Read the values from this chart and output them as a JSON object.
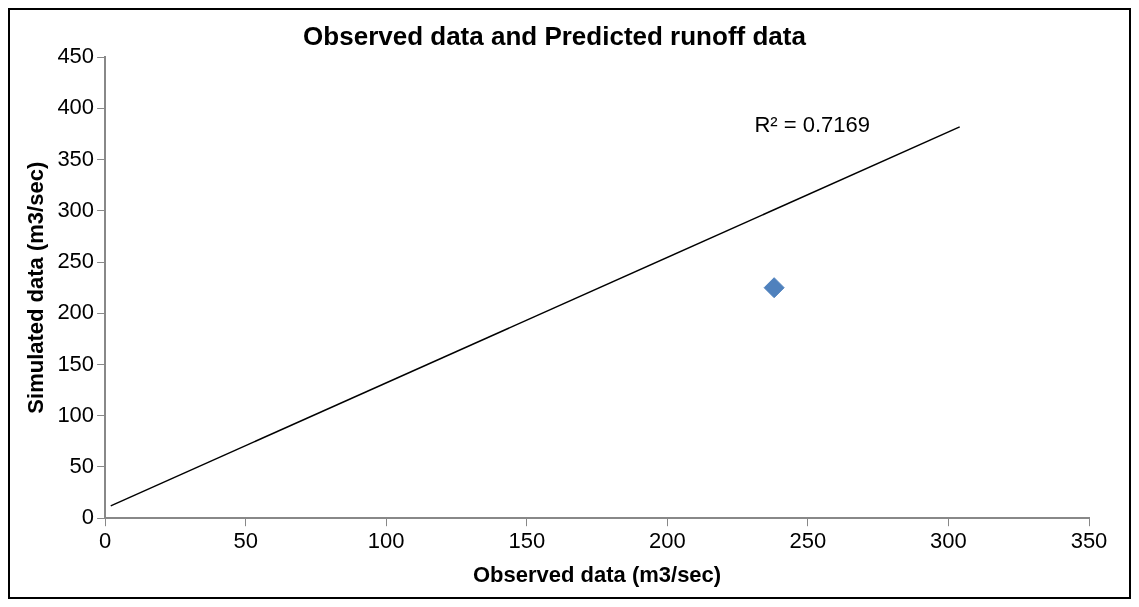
{
  "chart_data": {
    "type": "scatter",
    "title": "Observed data and Predicted runoff data",
    "xlabel": "Observed data (m3/sec)",
    "ylabel": "Simulated data (m3/sec)",
    "series": [
      {
        "color": "#4f81bd",
        "x": [
          238
        ],
        "values": [
          225
        ],
        "marker": "diamond"
      },
      {
        "type": "line",
        "color": "#000000",
        "x": [
          2,
          304
        ],
        "values": [
          12,
          382
        ],
        "marker": "none"
      }
    ],
    "annotations": [
      "R² = 0.7169"
    ],
    "xlim": [
      0,
      350
    ],
    "xticks": [
      0,
      50,
      100,
      150,
      200,
      250,
      300,
      350
    ],
    "ylim": [
      0,
      450
    ],
    "yticks": [
      0,
      50,
      100,
      150,
      200,
      250,
      300,
      350,
      400,
      450
    ],
    "grid": false,
    "legend": false
  }
}
